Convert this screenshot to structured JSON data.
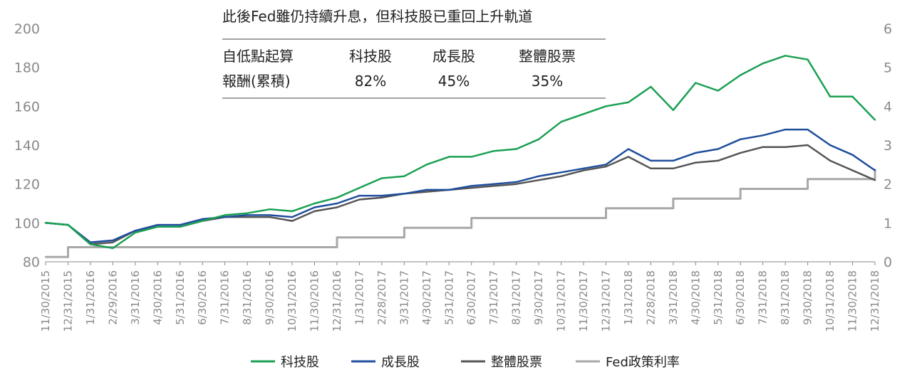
{
  "chart_data": {
    "type": "line",
    "title": "",
    "xlabel": "",
    "ylabel": "",
    "ylim": [
      80,
      200
    ],
    "y2lim": [
      0,
      6
    ],
    "y_ticks": [
      80,
      100,
      120,
      140,
      160,
      180,
      200
    ],
    "y2_ticks": [
      0,
      1,
      2,
      3,
      4,
      5,
      6
    ],
    "grid": false,
    "legend_position": "bottom",
    "x_tick_labels": [
      "11/30/2015",
      "12/31/2015",
      "1/31/2016",
      "2/29/2016",
      "3/31/2016",
      "4/30/2016",
      "5/31/2016",
      "6/30/2016",
      "7/31/2016",
      "8/31/2016",
      "9/30/2016",
      "10/31/2016",
      "11/30/2016",
      "12/31/2016",
      "1/31/2017",
      "2/28/2017",
      "3/31/2017",
      "4/30/2017",
      "5/31/2017",
      "6/30/2017",
      "7/31/2017",
      "8/31/2017",
      "9/30/2017",
      "10/31/2017",
      "11/30/2017",
      "12/31/2017",
      "1/31/2018",
      "2/28/2018",
      "3/31/2018",
      "4/30/2018",
      "5/31/2018",
      "6/30/2018",
      "7/31/2018",
      "8/31/2018",
      "9/30/2018",
      "10/31/2018",
      "11/30/2018",
      "12/31/2018"
    ],
    "series": [
      {
        "name": "科技股",
        "axis": "left",
        "color": "#1aa052",
        "values": [
          100,
          99,
          89,
          87,
          95,
          98,
          98,
          101,
          104,
          105,
          107,
          106,
          110,
          113,
          118,
          123,
          124,
          130,
          134,
          134,
          137,
          138,
          143,
          152,
          156,
          160,
          162,
          170,
          158,
          172,
          168,
          176,
          182,
          186,
          184,
          165,
          165,
          153
        ]
      },
      {
        "name": "成長股",
        "axis": "left",
        "color": "#1f4e9c",
        "values": [
          100,
          99,
          90,
          91,
          96,
          99,
          99,
          102,
          103,
          104,
          104,
          103,
          108,
          110,
          114,
          114,
          115,
          117,
          117,
          119,
          120,
          121,
          124,
          126,
          128,
          130,
          138,
          132,
          132,
          136,
          138,
          143,
          145,
          148,
          148,
          140,
          135,
          127
        ]
      },
      {
        "name": "整體股票",
        "axis": "left",
        "color": "#555555",
        "values": [
          100,
          99,
          89,
          90,
          96,
          98,
          98,
          101,
          103,
          103,
          103,
          101,
          106,
          108,
          112,
          113,
          115,
          116,
          117,
          118,
          119,
          120,
          122,
          124,
          127,
          129,
          134,
          128,
          128,
          131,
          132,
          136,
          139,
          139,
          140,
          132,
          127,
          122
        ]
      },
      {
        "name": "Fed政策利率",
        "axis": "right",
        "color": "#a8a8a8",
        "step": true,
        "values": [
          0.125,
          0.375,
          0.375,
          0.375,
          0.375,
          0.375,
          0.375,
          0.375,
          0.375,
          0.375,
          0.375,
          0.375,
          0.375,
          0.625,
          0.625,
          0.625,
          0.875,
          0.875,
          0.875,
          1.125,
          1.125,
          1.125,
          1.125,
          1.125,
          1.125,
          1.375,
          1.375,
          1.375,
          1.625,
          1.625,
          1.625,
          1.875,
          1.875,
          1.875,
          2.125,
          2.125,
          2.125,
          2.375
        ]
      }
    ]
  },
  "annotation": {
    "title": "此後Fed雖仍持續升息，但科技股已重回上升軌道",
    "row1": [
      "自低點起算",
      "科技股",
      "成長股",
      "整體股票"
    ],
    "row2": [
      "報酬(累積)",
      "82%",
      "45%",
      "35%"
    ]
  }
}
